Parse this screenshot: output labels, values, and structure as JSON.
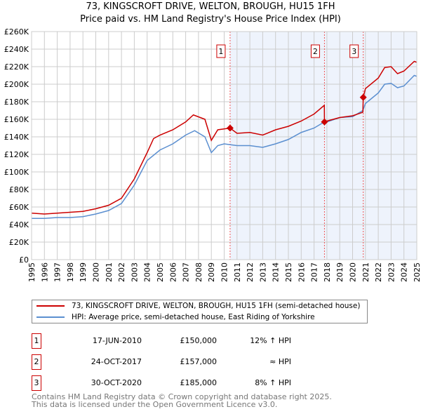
{
  "chart_data": {
    "type": "line",
    "title": "73, KINGSCROFT DRIVE, WELTON, BROUGH, HU15 1FH",
    "subtitle": "Price paid vs. HM Land Registry's House Price Index (HPI)",
    "xlim": [
      1995,
      2025
    ],
    "ylim": [
      0,
      260000
    ],
    "yticks": [
      0,
      20000,
      40000,
      60000,
      80000,
      100000,
      120000,
      140000,
      160000,
      180000,
      200000,
      220000,
      240000,
      260000
    ],
    "ytick_labels": [
      "£0",
      "£20K",
      "£40K",
      "£60K",
      "£80K",
      "£100K",
      "£120K",
      "£140K",
      "£160K",
      "£180K",
      "£200K",
      "£220K",
      "£240K",
      "£260K"
    ],
    "xticks": [
      1995,
      1996,
      1997,
      1998,
      1999,
      2000,
      2001,
      2002,
      2003,
      2004,
      2005,
      2006,
      2007,
      2008,
      2009,
      2010,
      2011,
      2012,
      2013,
      2014,
      2015,
      2016,
      2017,
      2018,
      2019,
      2020,
      2021,
      2022,
      2023,
      2024,
      2025
    ],
    "grid": true,
    "series": [
      {
        "name": "73, KINGSCROFT DRIVE, WELTON, BROUGH, HU15 1FH (semi-detached house)",
        "color": "#cc0000",
        "x": [
          1995,
          1996,
          1997,
          1998,
          1999,
          2000,
          2001,
          2002,
          2003,
          2004,
          2004.5,
          2005,
          2006,
          2007,
          2007.6,
          2008.5,
          2009.0,
          2009.5,
          2010.46,
          2011,
          2012,
          2013,
          2014,
          2015,
          2016,
          2017,
          2017.8,
          2017.81,
          2018,
          2019,
          2020,
          2020.8,
          2020.83,
          2021,
          2022,
          2022.5,
          2023,
          2023.5,
          2024,
          2024.8,
          2025
        ],
        "y": [
          53000,
          52000,
          53000,
          54000,
          55000,
          58000,
          62000,
          70000,
          92000,
          122000,
          138000,
          142000,
          148000,
          157000,
          165000,
          160000,
          136000,
          148000,
          150000,
          144000,
          145000,
          142000,
          148000,
          152000,
          158000,
          166000,
          176000,
          157000,
          158000,
          162000,
          164000,
          168000,
          185000,
          195000,
          207000,
          219000,
          220000,
          212000,
          215000,
          226000,
          225000
        ]
      },
      {
        "name": "HPI: Average price, semi-detached house, East Riding of Yorkshire",
        "color": "#5b8fd0",
        "x": [
          1995,
          1996,
          1997,
          1998,
          1999,
          2000,
          2001,
          2002,
          2003,
          2004,
          2005,
          2006,
          2007,
          2007.7,
          2008.5,
          2009.0,
          2009.5,
          2010,
          2011,
          2012,
          2013,
          2014,
          2015,
          2016,
          2017,
          2017.8,
          2018,
          2019,
          2020,
          2020.8,
          2021,
          2022,
          2022.5,
          2023,
          2023.5,
          2024,
          2024.8,
          2025
        ],
        "y": [
          47000,
          47000,
          48000,
          48000,
          49000,
          52000,
          56000,
          64000,
          85000,
          113000,
          125000,
          132000,
          142000,
          147000,
          140000,
          122000,
          130000,
          132000,
          130000,
          130000,
          128000,
          132000,
          137000,
          145000,
          150000,
          157000,
          157000,
          162000,
          163000,
          170000,
          178000,
          190000,
          200000,
          201000,
          196000,
          198000,
          210000,
          209000
        ]
      }
    ],
    "sales": [
      {
        "num": "1",
        "x": 2010.46,
        "date": "17-JUN-2010",
        "price_value": 150000,
        "price": "£150,000",
        "diff": "12% ↑ HPI"
      },
      {
        "num": "2",
        "x": 2017.81,
        "date": "24-OCT-2017",
        "price_value": 157000,
        "price": "£157,000",
        "diff": "≈ HPI"
      },
      {
        "num": "3",
        "x": 2020.83,
        "date": "30-OCT-2020",
        "price_value": 185000,
        "price": "£185,000",
        "diff": "8% ↑ HPI"
      }
    ],
    "legend_position": "bottom"
  },
  "footer": [
    "Contains HM Land Registry data © Crown copyright and database right 2025.",
    "This data is licensed under the Open Government Licence v3.0."
  ]
}
